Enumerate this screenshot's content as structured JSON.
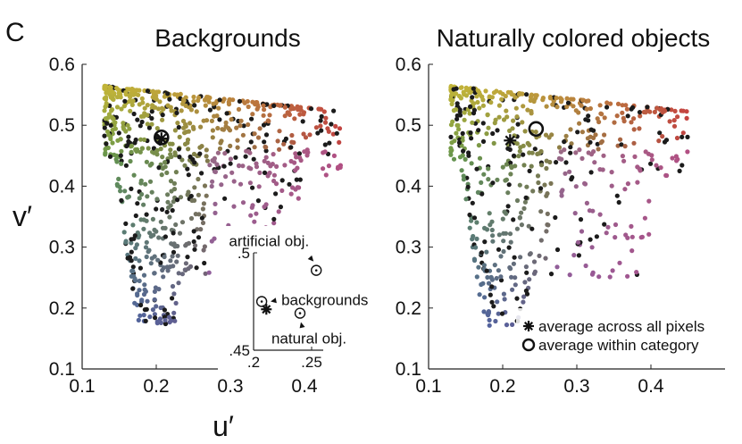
{
  "panel_label": "C",
  "chart_data": [
    {
      "type": "scatter",
      "title": "Backgrounds",
      "xlabel": "u′",
      "ylabel": "v′",
      "xlim": [
        0.1,
        0.5
      ],
      "ylim": [
        0.1,
        0.6
      ],
      "x_ticks": [
        "0.1",
        "0.2",
        "0.3",
        "0.4"
      ],
      "y_ticks": [
        "0.1",
        "0.2",
        "0.3",
        "0.4",
        "0.5",
        "0.6"
      ],
      "series": [
        {
          "marker": "asterisk",
          "x": [
            0.207
          ],
          "y": [
            0.478
          ]
        },
        {
          "marker": "circle",
          "x": [
            0.207
          ],
          "y": [
            0.48
          ]
        }
      ],
      "inset": {
        "xlim": [
          0.2,
          0.26
        ],
        "ylim": [
          0.45,
          0.5
        ],
        "x_ticks": [
          ".2",
          ".25"
        ],
        "y_ticks": [
          ".45",
          ".5"
        ],
        "points": [
          {
            "label": "artificial obj.",
            "x": 0.254,
            "y": 0.491,
            "marker": "circle-dot"
          },
          {
            "label": "backgrounds",
            "x": 0.207,
            "y": 0.475,
            "marker": "circle-dot"
          },
          {
            "label": "natural obj.",
            "x": 0.24,
            "y": 0.469,
            "marker": "circle-dot"
          },
          {
            "label": "",
            "x": 0.211,
            "y": 0.471,
            "marker": "asterisk"
          }
        ]
      }
    },
    {
      "type": "scatter",
      "title": "Naturally colored objects",
      "xlim": [
        0.1,
        0.5
      ],
      "ylim": [
        0.1,
        0.6
      ],
      "x_ticks": [
        "0.1",
        "0.2",
        "0.3",
        "0.4"
      ],
      "y_ticks": [
        "0.1",
        "0.2",
        "0.3",
        "0.4",
        "0.5",
        "0.6"
      ],
      "series": [
        {
          "marker": "asterisk",
          "x": [
            0.21
          ],
          "y": [
            0.475
          ]
        },
        {
          "marker": "circle",
          "x": [
            0.245
          ],
          "y": [
            0.494
          ]
        }
      ],
      "legend": [
        {
          "marker": "asterisk",
          "label": "average across all pixels"
        },
        {
          "marker": "circle",
          "label": "average within category"
        }
      ]
    }
  ]
}
